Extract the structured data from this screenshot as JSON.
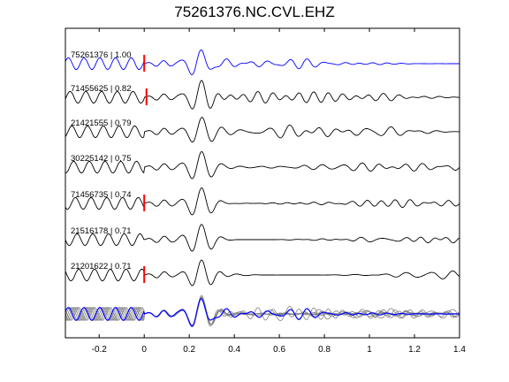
{
  "chart_data": {
    "type": "line",
    "title": "75261376.NC.CVL.EHZ",
    "xlabel": "",
    "ylabel": "",
    "xlim": [
      -0.35,
      1.4
    ],
    "x_ticks": [
      -0.2,
      0,
      0.2,
      0.4,
      0.6,
      0.8,
      1,
      1.2,
      1.4
    ],
    "x_tick_labels": [
      "-0.2",
      "0",
      "0.2",
      "0.4",
      "0.6",
      "0.8",
      "1",
      "1.2",
      "1.4"
    ],
    "grid": false,
    "colors": {
      "master": "#0000ff",
      "trace": "#000000",
      "overlay": "#808080",
      "pick": "#ff0000"
    },
    "series": [
      {
        "label": "75261376 | 1.00",
        "pick_time": 0.0,
        "is_master": true
      },
      {
        "label": "71455625 | 0.82",
        "pick_time": 0.01,
        "is_master": false
      },
      {
        "label": "21421555 | 0.79",
        "pick_time": null,
        "is_master": false
      },
      {
        "label": "30225142 | 0.75",
        "pick_time": null,
        "is_master": false
      },
      {
        "label": "71456735 | 0.74",
        "pick_time": 0.0,
        "is_master": false
      },
      {
        "label": "21516178 | 0.71",
        "pick_time": null,
        "is_master": false
      },
      {
        "label": "21201622 | 0.71",
        "pick_time": 0.0,
        "is_master": false
      }
    ],
    "stack_row": true
  }
}
